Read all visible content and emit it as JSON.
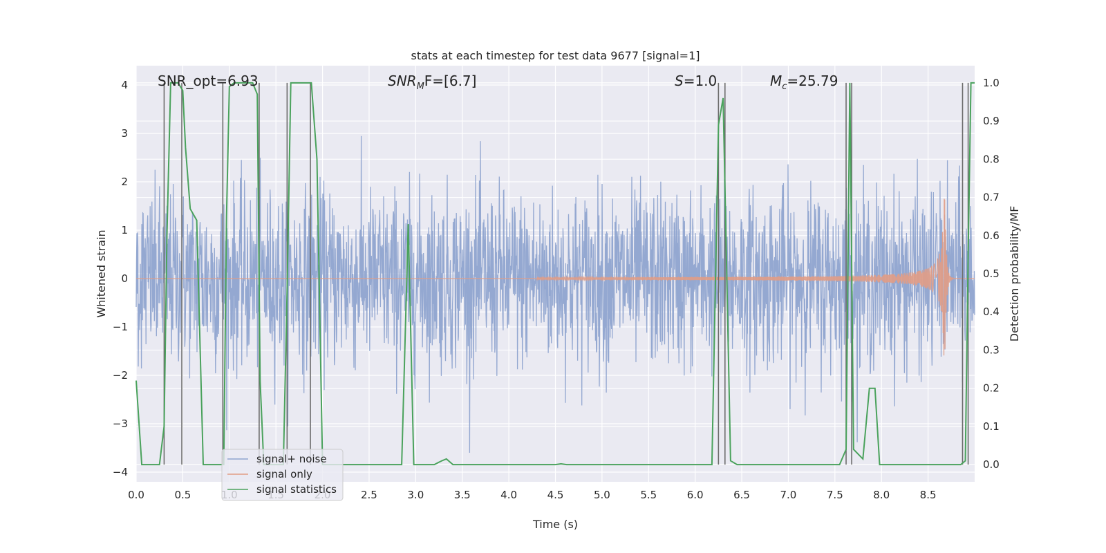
{
  "chart_data": {
    "type": "line",
    "title": "stats at each timestep for test data 9677 [signal=1]",
    "xlabel": "Time (s)",
    "ylabel_left": "Whitened strain",
    "ylabel_right": "Detection probability/MF",
    "xlim": [
      0.0,
      9.0
    ],
    "ylim_left": [
      -4.2,
      4.4
    ],
    "ylim_right": [
      -0.045,
      1.045
    ],
    "x_ticks": [
      0.0,
      0.5,
      1.0,
      1.5,
      2.0,
      2.5,
      3.0,
      3.5,
      4.0,
      4.5,
      5.0,
      5.5,
      6.0,
      6.5,
      7.0,
      7.5,
      8.0,
      8.5
    ],
    "x_tick_labels": [
      "0.0",
      "0.5",
      "1.0",
      "1.5",
      "2.0",
      "2.5",
      "3.0",
      "3.5",
      "4.0",
      "4.5",
      "5.0",
      "5.5",
      "6.0",
      "6.5",
      "7.0",
      "7.5",
      "8.0",
      "8.5"
    ],
    "y_left_ticks": [
      -4,
      -3,
      -2,
      -1,
      0,
      1,
      2,
      3,
      4
    ],
    "y_left_tick_labels": [
      "−4",
      "−3",
      "−2",
      "−1",
      "0",
      "1",
      "2",
      "3",
      "4"
    ],
    "y_right_ticks": [
      0.0,
      0.1,
      0.2,
      0.3,
      0.4,
      0.5,
      0.6,
      0.7,
      0.8,
      0.9,
      1.0
    ],
    "y_right_tick_labels": [
      "0.0",
      "0.1",
      "0.2",
      "0.3",
      "0.4",
      "0.5",
      "0.6",
      "0.7",
      "0.8",
      "0.9",
      "1.0"
    ],
    "annotations": {
      "snr_opt": "SNR_opt=6.93",
      "snr_mf_main": "SNR",
      "snr_mf_sub": "M",
      "snr_mf_tail": "F=[6.7]",
      "s_main": "S",
      "s_tail": "=1.0",
      "mc_main": "M",
      "mc_sub": "c",
      "mc_tail": "=25.79"
    },
    "legend": {
      "position": "lower-left",
      "entries": [
        "signal+ noise",
        "signal only",
        "signal statistics"
      ]
    },
    "series": [
      {
        "name": "signal+ noise",
        "color": "#8fa4cf",
        "description": "dense whitened noise + signal, amplitude mostly within ±1.7, spikes to ±3.5",
        "noise_std": 0.9,
        "noise_max_abs": 3.6
      },
      {
        "name": "signal only",
        "color": "#e19c85",
        "chirp": {
          "start": 4.3,
          "merger": 8.68,
          "peak_amplitude": 1.65,
          "start_amplitude": 0.02
        }
      },
      {
        "name": "signal statistics",
        "color": "#4aa25c",
        "axis": "right",
        "x": [
          0.0,
          0.06,
          0.25,
          0.3,
          0.33,
          0.37,
          0.45,
          0.5,
          0.53,
          0.58,
          0.65,
          0.72,
          0.78,
          0.85,
          0.94,
          0.97,
          1.0,
          1.05,
          1.25,
          1.3,
          1.33,
          1.37,
          1.45,
          1.52,
          1.58,
          1.62,
          1.66,
          1.7,
          1.88,
          1.94,
          2.0,
          2.1,
          2.2,
          2.5,
          2.85,
          2.92,
          2.98,
          3.0,
          3.2,
          3.28,
          3.33,
          3.4,
          3.6,
          4.5,
          4.56,
          4.62,
          5.0,
          6.18,
          6.25,
          6.3,
          6.38,
          6.45,
          6.6,
          7.0,
          7.55,
          7.62,
          7.66,
          7.7,
          7.8,
          7.87,
          7.93,
          7.98,
          8.05,
          8.2,
          8.5,
          8.85,
          8.9,
          8.93,
          8.96,
          9.0
        ],
        "y": [
          0.22,
          0.0,
          0.0,
          0.1,
          0.6,
          1.0,
          1.0,
          0.98,
          0.83,
          0.67,
          0.64,
          0.0,
          0.0,
          0.0,
          0.0,
          0.65,
          0.99,
          1.0,
          1.0,
          0.97,
          0.22,
          0.0,
          0.0,
          0.0,
          0.0,
          0.45,
          1.0,
          1.0,
          1.0,
          0.8,
          0.0,
          0.0,
          0.0,
          0.0,
          0.0,
          0.63,
          0.0,
          0.0,
          0.0,
          0.01,
          0.015,
          0.0,
          0.0,
          0.0,
          0.002,
          0.0,
          0.0,
          0.0,
          0.89,
          0.96,
          0.01,
          0.0,
          0.0,
          0.0,
          0.0,
          0.04,
          1.0,
          0.04,
          0.015,
          0.2,
          0.2,
          0.0,
          0.0,
          0.0,
          0.0,
          0.0,
          0.01,
          0.55,
          1.0,
          1.0
        ]
      }
    ],
    "vertical_lines": [
      0.3,
      0.49,
      0.93,
      1.32,
      1.62,
      1.87,
      6.25,
      6.32,
      7.62,
      7.68,
      8.87,
      8.93
    ],
    "vertical_line_color": "#6b6b6b"
  }
}
